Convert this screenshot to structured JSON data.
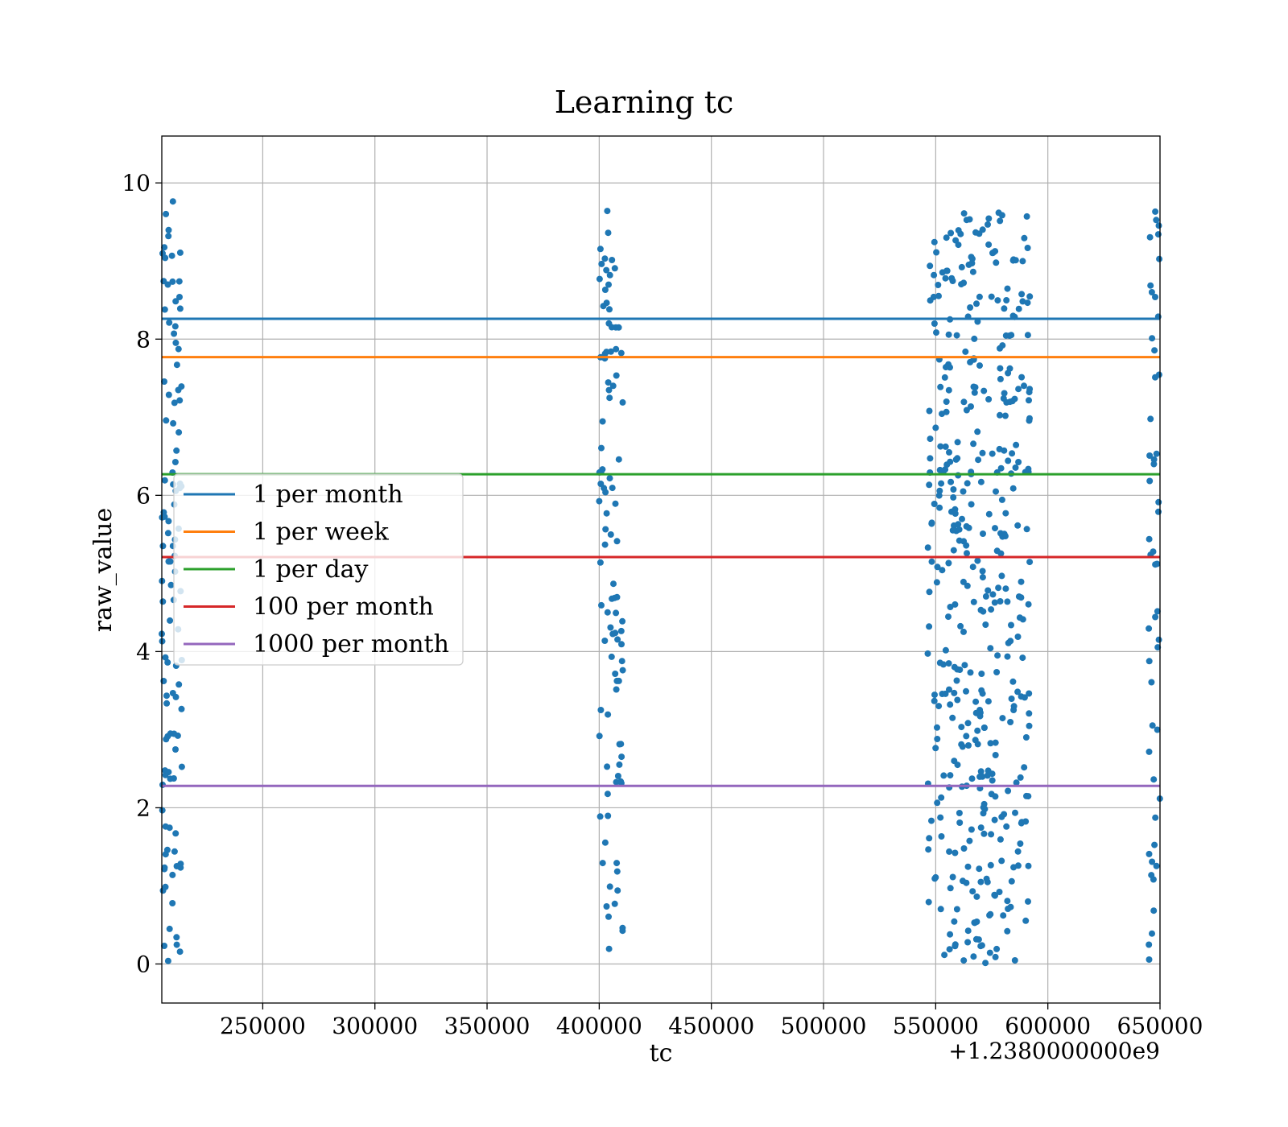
{
  "chart_data": {
    "type": "scatter",
    "title": "Learning tc",
    "xlabel": "tc",
    "ylabel": "raw_value",
    "x_offset_label": "+1.2380000000e9",
    "x_offset": 1238000000,
    "xlim": [
      205000,
      650000
    ],
    "ylim": [
      -0.5,
      10.6
    ],
    "xticks": [
      250000,
      300000,
      350000,
      400000,
      450000,
      500000,
      550000,
      600000,
      650000
    ],
    "xtick_labels": [
      "250000",
      "300000",
      "350000",
      "400000",
      "450000",
      "500000",
      "550000",
      "600000",
      "650000"
    ],
    "yticks": [
      0,
      2,
      4,
      6,
      8,
      10
    ],
    "ytick_labels": [
      "0",
      "2",
      "4",
      "6",
      "8",
      "10"
    ],
    "grid": true,
    "legend_position": "center-left",
    "reference_lines": [
      {
        "name": "1 per month",
        "y": 8.26,
        "color": "#1f77b4"
      },
      {
        "name": "1 per week",
        "y": 7.77,
        "color": "#ff7f0e"
      },
      {
        "name": "1 per day",
        "y": 6.27,
        "color": "#2ca02c"
      },
      {
        "name": "100 per month",
        "y": 5.21,
        "color": "#d62728"
      },
      {
        "name": "1000 per month",
        "y": 2.28,
        "color": "#9467bd"
      }
    ],
    "scatter_color": "#1f77b4",
    "clusters": [
      {
        "x_range": [
          205000,
          214000
        ],
        "count": 110
      },
      {
        "x_range": [
          400000,
          410500
        ],
        "count": 100
      },
      {
        "x_range": [
          546000,
          592000
        ],
        "count": 430
      },
      {
        "x_range": [
          645000,
          650000
        ],
        "count": 50
      }
    ]
  }
}
